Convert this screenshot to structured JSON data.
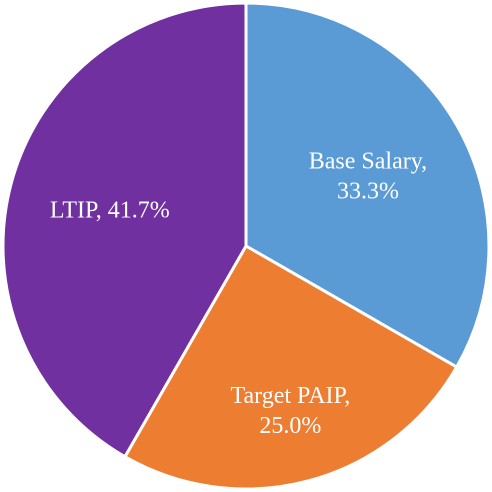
{
  "chart_data": {
    "type": "pie",
    "title": "",
    "slices": [
      {
        "name": "Base Salary",
        "value": 33.3,
        "label_lines": [
          "Base Salary,",
          "33.3%"
        ],
        "color": "#5b9bd5"
      },
      {
        "name": "Target PAIP",
        "value": 25.0,
        "label_lines": [
          "Target PAIP,",
          "25.0%"
        ],
        "color": "#ed7d31"
      },
      {
        "name": "LTIP",
        "value": 41.7,
        "label_lines": [
          "LTIP, 41.7%"
        ],
        "color": "#7030a0"
      }
    ],
    "start_angle_deg": 0,
    "direction": "clockwise",
    "legend": "none"
  }
}
